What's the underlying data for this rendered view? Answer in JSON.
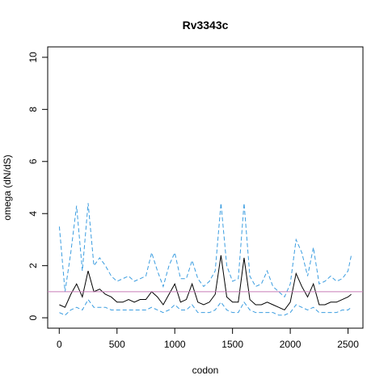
{
  "chart_data": {
    "type": "line",
    "title": "Rv3343c",
    "xlabel": "codon",
    "ylabel": "omega (dN/dS)",
    "x": [
      1,
      50,
      100,
      150,
      200,
      250,
      300,
      350,
      400,
      450,
      500,
      550,
      600,
      650,
      700,
      750,
      800,
      850,
      900,
      950,
      1000,
      1050,
      1100,
      1150,
      1200,
      1250,
      1300,
      1350,
      1400,
      1450,
      1500,
      1550,
      1600,
      1650,
      1700,
      1750,
      1800,
      1850,
      1900,
      1950,
      2000,
      2050,
      2100,
      2150,
      2200,
      2250,
      2300,
      2350,
      2400,
      2450,
      2500,
      2528
    ],
    "series": [
      {
        "color": "#000000",
        "dashed": false,
        "values": [
          0.5,
          0.4,
          0.9,
          1.3,
          0.8,
          1.8,
          1.0,
          1.1,
          0.9,
          0.8,
          0.6,
          0.6,
          0.7,
          0.6,
          0.7,
          0.7,
          1.0,
          0.8,
          0.5,
          0.9,
          1.3,
          0.6,
          0.7,
          1.3,
          0.6,
          0.5,
          0.6,
          0.9,
          2.4,
          0.8,
          0.6,
          0.6,
          2.3,
          0.7,
          0.5,
          0.5,
          0.6,
          0.5,
          0.4,
          0.3,
          0.6,
          1.7,
          1.2,
          0.8,
          1.3,
          0.5,
          0.5,
          0.6,
          0.6,
          0.7,
          0.8,
          0.9
        ]
      },
      {
        "color": "#3b9de0",
        "dashed": true,
        "values": [
          3.5,
          1.0,
          2.5,
          4.3,
          1.8,
          4.4,
          2.0,
          2.3,
          2.0,
          1.6,
          1.4,
          1.5,
          1.6,
          1.4,
          1.5,
          1.6,
          2.5,
          1.8,
          1.2,
          2.0,
          2.5,
          1.5,
          1.5,
          2.2,
          1.5,
          1.2,
          1.4,
          1.8,
          4.4,
          2.0,
          1.4,
          1.5,
          4.4,
          1.6,
          1.2,
          1.3,
          1.8,
          1.2,
          1.0,
          0.8,
          1.3,
          3.0,
          2.5,
          1.6,
          2.7,
          1.3,
          1.4,
          1.6,
          1.4,
          1.5,
          1.8,
          2.4
        ]
      },
      {
        "color": "#3b9de0",
        "dashed": true,
        "values": [
          0.2,
          0.1,
          0.3,
          0.4,
          0.3,
          0.7,
          0.4,
          0.4,
          0.4,
          0.3,
          0.3,
          0.3,
          0.3,
          0.3,
          0.3,
          0.3,
          0.4,
          0.3,
          0.2,
          0.3,
          0.5,
          0.3,
          0.3,
          0.5,
          0.2,
          0.2,
          0.2,
          0.3,
          0.6,
          0.3,
          0.2,
          0.2,
          0.6,
          0.3,
          0.2,
          0.2,
          0.2,
          0.2,
          0.1,
          0.1,
          0.2,
          0.5,
          0.4,
          0.3,
          0.4,
          0.2,
          0.2,
          0.2,
          0.2,
          0.3,
          0.3,
          0.4
        ]
      }
    ],
    "reference_line": {
      "value": 1,
      "color": "#c77cb8"
    },
    "xlim": [
      -100,
      2629
    ],
    "ylim": [
      -0.4,
      10.4
    ],
    "xticks": [
      0,
      500,
      1000,
      1500,
      2000,
      2500
    ],
    "yticks": [
      0,
      2,
      4,
      6,
      8,
      10
    ]
  }
}
